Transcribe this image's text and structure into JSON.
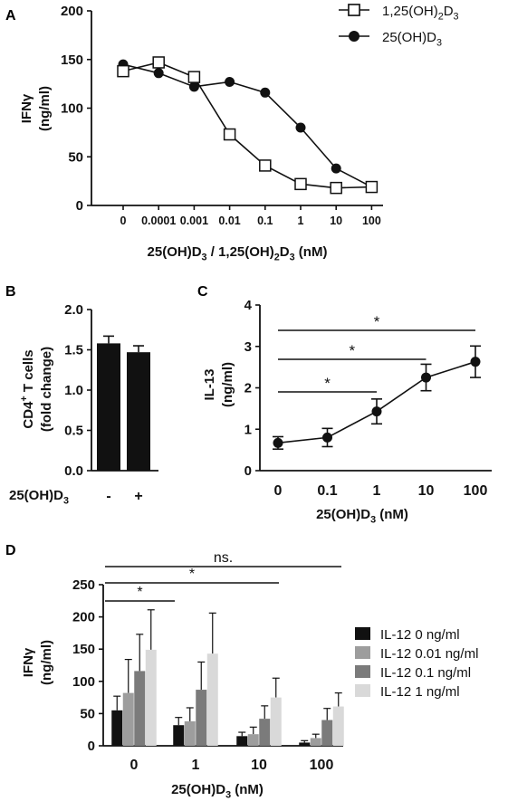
{
  "chart_data": [
    {
      "panel": "A",
      "type": "line",
      "ylabel": [
        "IFNγ",
        "(ng/ml)"
      ],
      "xlabel": {
        "parts": [
          [
            "25(OH)D",
            ""
          ],
          [
            "3",
            "sub"
          ],
          [
            " / 1,25(OH)",
            ""
          ],
          [
            "2",
            "sub"
          ],
          [
            "D",
            ""
          ],
          [
            "3",
            "sub"
          ],
          [
            " (nM)",
            ""
          ]
        ]
      },
      "categories": [
        "0",
        "0.0001",
        "0.001",
        "0.01",
        "0.1",
        "1",
        "10",
        "100"
      ],
      "yticks": [
        "0",
        "50",
        "100",
        "150",
        "200"
      ],
      "ylim": [
        0,
        200
      ],
      "legend": "top-right",
      "series": [
        {
          "name": {
            "parts": [
              [
                "1,25(OH)",
                ""
              ],
              [
                "2",
                "sub"
              ],
              [
                "D",
                ""
              ],
              [
                "3",
                "sub"
              ]
            ]
          },
          "marker": "open-square",
          "values": [
            138,
            147,
            132,
            73,
            41,
            22,
            18,
            19
          ]
        },
        {
          "name": {
            "parts": [
              [
                "25(OH)D",
                ""
              ],
              [
                "3",
                "sub"
              ]
            ]
          },
          "marker": "filled-circle",
          "values": [
            145,
            136,
            122,
            127,
            116,
            80,
            38,
            19
          ]
        }
      ]
    },
    {
      "panel": "B",
      "type": "bar",
      "ylabel": {
        "line1": [
          [
            "CD4",
            ""
          ],
          [
            "+",
            "sup"
          ],
          [
            " T cells",
            ""
          ]
        ],
        "line2": [
          [
            "(fold change)",
            ""
          ]
        ]
      },
      "xlabel": {
        "parts": [
          [
            "25(OH)D",
            ""
          ],
          [
            "3",
            "sub"
          ]
        ]
      },
      "categories": [
        "-",
        "+"
      ],
      "values": [
        1.58,
        1.47
      ],
      "errors": [
        0.09,
        0.08
      ],
      "yticks": [
        "0.0",
        "0.5",
        "1.0",
        "1.5",
        "2.0"
      ],
      "ylim": [
        0,
        2.0
      ]
    },
    {
      "panel": "C",
      "type": "line",
      "ylabel": [
        "IL-13",
        "(ng/ml)"
      ],
      "xlabel": {
        "parts": [
          [
            "25(OH)D",
            ""
          ],
          [
            "3",
            "sub"
          ],
          [
            " (nM)",
            ""
          ]
        ]
      },
      "categories": [
        "0",
        "0.1",
        "1",
        "10",
        "100"
      ],
      "values": [
        0.67,
        0.8,
        1.43,
        2.25,
        2.63
      ],
      "errors": [
        0.15,
        0.22,
        0.3,
        0.32,
        0.38
      ],
      "yticks": [
        "0",
        "1",
        "2",
        "3",
        "4"
      ],
      "ylim": [
        0,
        4
      ],
      "significance": [
        {
          "from": 0,
          "to": 4,
          "label": "*"
        },
        {
          "from": 0,
          "to": 3,
          "label": "*"
        },
        {
          "from": 0,
          "to": 2,
          "label": "*"
        }
      ]
    },
    {
      "panel": "D",
      "type": "bar",
      "ylabel": [
        "IFNγ",
        "(ng/ml)"
      ],
      "xlabel": {
        "parts": [
          [
            "25(OH)D",
            ""
          ],
          [
            "3",
            "sub"
          ],
          [
            " (nM)",
            ""
          ]
        ]
      },
      "categories": [
        "0",
        "1",
        "10",
        "100"
      ],
      "yticks": [
        "0",
        "50",
        "100",
        "150",
        "200",
        "250"
      ],
      "ylim": [
        0,
        250
      ],
      "legend": "right",
      "series": [
        {
          "name": "IL-12 0 ng/ml",
          "color": "#111111",
          "values": [
            55,
            32,
            15,
            5
          ],
          "errors": [
            22,
            12,
            6,
            3
          ]
        },
        {
          "name": "IL-12 0.01 ng/ml",
          "color": "#9d9d9d",
          "values": [
            82,
            38,
            18,
            12
          ],
          "errors": [
            52,
            21,
            11,
            6
          ]
        },
        {
          "name": "IL-12 0.1 ng/ml",
          "color": "#7b7b7b",
          "values": [
            116,
            87,
            42,
            40
          ],
          "errors": [
            57,
            43,
            20,
            18
          ]
        },
        {
          "name": "IL-12 1 ng/ml",
          "color": "#d9d9d9",
          "values": [
            149,
            143,
            75,
            61
          ],
          "errors": [
            62,
            63,
            30,
            21
          ]
        }
      ],
      "significance": [
        {
          "from": 0,
          "to": 3,
          "label": "ns."
        },
        {
          "from": 0,
          "to": 2,
          "label": "*"
        },
        {
          "from": 0,
          "to": 0.45,
          "label": "*"
        }
      ]
    }
  ],
  "panel_letters": [
    "A",
    "B",
    "C",
    "D"
  ]
}
